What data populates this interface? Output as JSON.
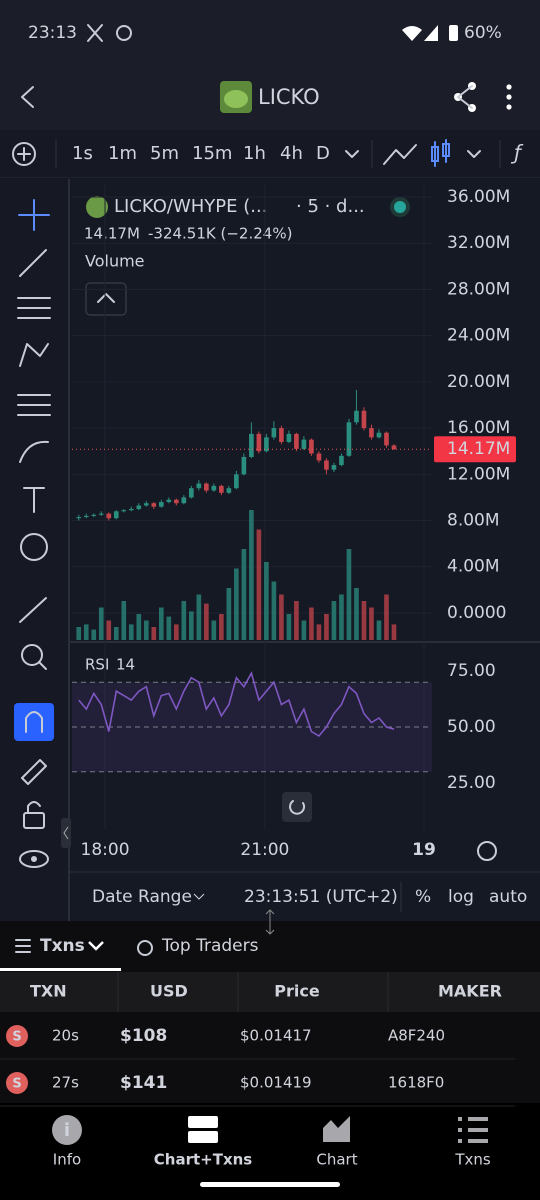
{
  "status": {
    "time": "23:13",
    "battery": "60%"
  },
  "header": {
    "title": "LICKO"
  },
  "intervals": [
    "1s",
    "1m",
    "5m",
    "15m",
    "1h",
    "4h",
    "D"
  ],
  "active_interval": 2,
  "chart_data": {
    "type": "candlestick",
    "title": "LICKO/WHYPE (...",
    "subtitle": "· 5 · d...",
    "change": "-324.51K (−2.24%)",
    "volume_label": "Volume",
    "last_price": {
      "value": 14.17,
      "label": "14.17M"
    },
    "up_color": "#2b8f80",
    "down_color": "#c6444b",
    "ylim": [
      -2.34,
      37.04
    ],
    "yticks": [
      {
        "value": 36,
        "label": "36.00M"
      },
      {
        "value": 32,
        "label": "32.00M"
      },
      {
        "value": 28,
        "label": "28.00M"
      },
      {
        "value": 24,
        "label": "24.00M"
      },
      {
        "value": 20,
        "label": "20.00M"
      },
      {
        "value": 16,
        "label": "16.00M"
      },
      {
        "value": 12,
        "label": "12.00M"
      },
      {
        "value": 8,
        "label": "8.00M"
      },
      {
        "value": 4,
        "label": "4.00M"
      },
      {
        "value": 0,
        "label": "0.0000"
      }
    ],
    "xlim": [
      0,
      47.3
    ],
    "xticks": [
      {
        "value": 4,
        "label": "18:00"
      },
      {
        "value": 25.3,
        "label": "21:00"
      },
      {
        "value": 46.5,
        "label": "19"
      }
    ],
    "candles": [
      [
        8.2,
        8.5,
        8.0,
        8.3
      ],
      [
        8.3,
        8.6,
        8.2,
        8.4
      ],
      [
        8.4,
        8.6,
        8.3,
        8.5
      ],
      [
        8.5,
        8.8,
        8.4,
        8.6
      ],
      [
        8.6,
        8.7,
        8.0,
        8.2
      ],
      [
        8.2,
        8.9,
        8.1,
        8.8
      ],
      [
        8.8,
        9.0,
        8.7,
        8.9
      ],
      [
        8.9,
        9.2,
        8.8,
        9.0
      ],
      [
        9.0,
        9.5,
        8.9,
        9.3
      ],
      [
        9.3,
        9.7,
        9.2,
        9.5
      ],
      [
        9.5,
        9.6,
        9.0,
        9.2
      ],
      [
        9.2,
        9.8,
        9.1,
        9.6
      ],
      [
        9.6,
        10.0,
        9.5,
        9.8
      ],
      [
        9.8,
        9.9,
        9.3,
        9.5
      ],
      [
        9.5,
        10.2,
        9.4,
        10.0
      ],
      [
        10.0,
        11.0,
        9.9,
        10.8
      ],
      [
        10.8,
        11.5,
        10.6,
        11.2
      ],
      [
        11.2,
        11.3,
        10.4,
        10.6
      ],
      [
        10.6,
        11.2,
        10.5,
        11.0
      ],
      [
        11.0,
        11.1,
        10.2,
        10.4
      ],
      [
        10.4,
        11.0,
        10.3,
        10.8
      ],
      [
        10.8,
        12.3,
        10.7,
        12.0
      ],
      [
        12.0,
        13.8,
        11.9,
        13.5
      ],
      [
        13.5,
        16.5,
        13.4,
        15.5
      ],
      [
        15.5,
        15.7,
        13.8,
        14.0
      ],
      [
        14.0,
        15.5,
        13.9,
        15.2
      ],
      [
        15.2,
        16.6,
        15.0,
        16.0
      ],
      [
        16.0,
        16.2,
        14.6,
        14.8
      ],
      [
        14.8,
        15.8,
        14.7,
        15.5
      ],
      [
        15.5,
        15.6,
        14.0,
        14.2
      ],
      [
        14.2,
        15.3,
        14.1,
        15.0
      ],
      [
        15.0,
        15.1,
        13.6,
        13.8
      ],
      [
        13.8,
        14.0,
        13.0,
        13.2
      ],
      [
        13.2,
        13.4,
        12.0,
        12.4
      ],
      [
        12.4,
        13.0,
        12.2,
        12.8
      ],
      [
        12.8,
        13.8,
        12.7,
        13.6
      ],
      [
        13.6,
        16.8,
        13.5,
        16.5
      ],
      [
        16.5,
        19.3,
        16.3,
        17.5
      ],
      [
        17.5,
        17.8,
        15.8,
        16.0
      ],
      [
        16.0,
        16.3,
        15.0,
        15.2
      ],
      [
        15.2,
        15.9,
        15.1,
        15.6
      ],
      [
        15.6,
        15.7,
        14.3,
        14.5
      ],
      [
        14.5,
        14.6,
        14.1,
        14.17
      ]
    ],
    "volume_ylim": [
      0,
      100
    ],
    "volumes": [
      10,
      12,
      8,
      25,
      15,
      10,
      30,
      12,
      20,
      15,
      10,
      25,
      18,
      12,
      30,
      22,
      35,
      28,
      15,
      20,
      40,
      55,
      70,
      100,
      85,
      60,
      45,
      35,
      20,
      30,
      15,
      25,
      12,
      20,
      30,
      35,
      70,
      40,
      30,
      25,
      15,
      35,
      12
    ],
    "rsi_label": "RSI",
    "rsi_period": "14",
    "rsi_color": "#7e57c2",
    "rsi_ylim": [
      25,
      75
    ],
    "rsi_yticks": [
      {
        "value": 75,
        "label": "75.00"
      },
      {
        "value": 50,
        "label": "50.00"
      },
      {
        "value": 25,
        "label": "25.00"
      }
    ],
    "rsi_band": [
      30,
      70
    ],
    "rsi": [
      62,
      58,
      65,
      60,
      48,
      66,
      64,
      62,
      66,
      68,
      55,
      64,
      65,
      58,
      66,
      72,
      70,
      58,
      63,
      55,
      60,
      72,
      68,
      74,
      62,
      66,
      70,
      60,
      62,
      52,
      58,
      48,
      46,
      50,
      56,
      60,
      68,
      65,
      56,
      52,
      54,
      50,
      49
    ]
  },
  "footer": [
    "Date Range",
    "23:13:51 (UTC+2)",
    "%",
    "log",
    "auto"
  ],
  "tabs": [
    "Txns",
    "Top Traders"
  ],
  "table": {
    "columns": [
      "TXN",
      "USD",
      "Price",
      "MAKER"
    ],
    "rows": [
      [
        "S",
        "20s",
        "$108",
        "$0.01417",
        "A8F240"
      ],
      [
        "S",
        "27s",
        "$141",
        "$0.01419",
        "1618F0"
      ]
    ]
  },
  "nav": [
    "Info",
    "Chart+Txns",
    "Chart",
    "Txns"
  ]
}
